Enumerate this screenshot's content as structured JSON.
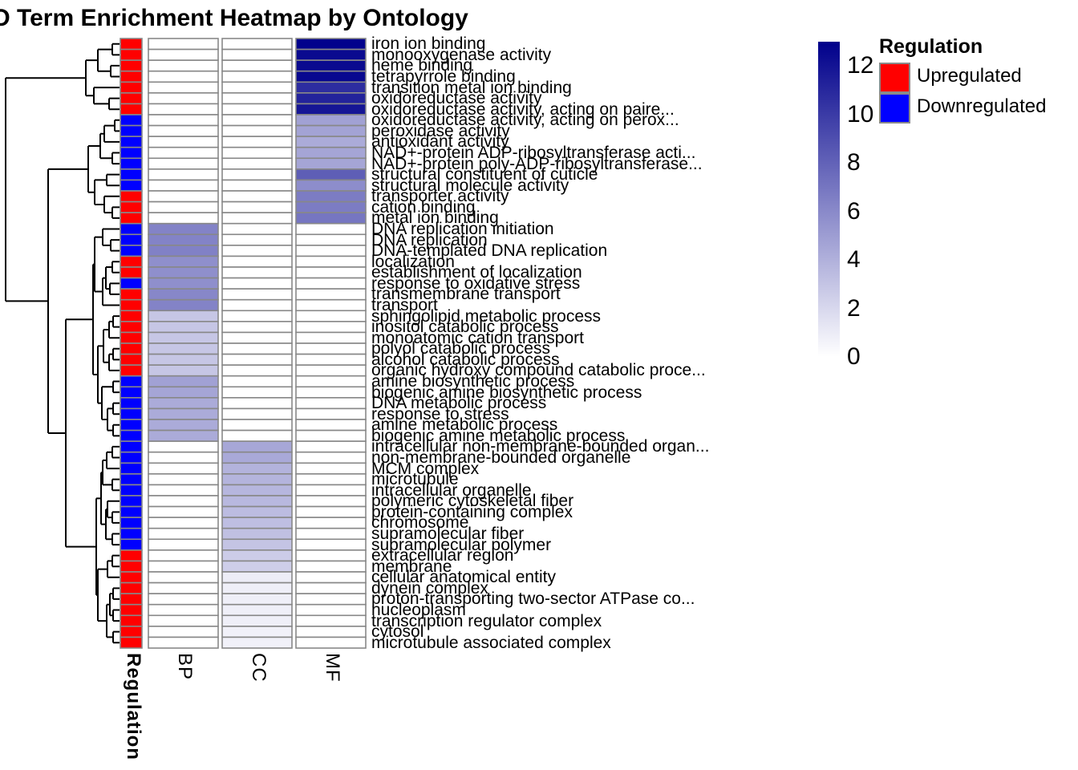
{
  "title": "GO Term Enrichment Heatmap by Ontology",
  "chart_data": {
    "type": "heatmap",
    "title": "GO Term Enrichment Heatmap by Ontology",
    "columns": [
      "BP",
      "CC",
      "MF"
    ],
    "annotation_title": "Regulation",
    "value_scale": {
      "min": 0,
      "max": 13,
      "color_low": "#FFFFFF",
      "color_high": "#00008B",
      "na_color": "#FFFFFF"
    },
    "regulation_colors": {
      "up": "#FF0000",
      "down": "#0000FF"
    },
    "rows": [
      {
        "label": "iron ion binding",
        "ontology": "MF",
        "value": 12.9,
        "regulation": "up"
      },
      {
        "label": "monooxygenase activity",
        "ontology": "MF",
        "value": 12.5,
        "regulation": "up"
      },
      {
        "label": "heme binding",
        "ontology": "MF",
        "value": 12.5,
        "regulation": "up"
      },
      {
        "label": "tetrapyrrole binding",
        "ontology": "MF",
        "value": 12.6,
        "regulation": "up"
      },
      {
        "label": "transition metal ion binding",
        "ontology": "MF",
        "value": 10.7,
        "regulation": "up"
      },
      {
        "label": "oxidoreductase activity",
        "ontology": "MF",
        "value": 11.2,
        "regulation": "up"
      },
      {
        "label": "oxidoreductase activity, acting on paire...",
        "ontology": "MF",
        "value": 11.9,
        "regulation": "up"
      },
      {
        "label": "oxidoreductase activity, acting on perox...",
        "ontology": "MF",
        "value": 4.8,
        "regulation": "down"
      },
      {
        "label": "peroxidase activity",
        "ontology": "MF",
        "value": 4.7,
        "regulation": "down"
      },
      {
        "label": "antioxidant activity",
        "ontology": "MF",
        "value": 4.3,
        "regulation": "down"
      },
      {
        "label": "NAD+-protein ADP-ribosyltransferase acti...",
        "ontology": "MF",
        "value": 4.6,
        "regulation": "down"
      },
      {
        "label": "NAD+-protein poly-ADP-ribosyltransferase...",
        "ontology": "MF",
        "value": 4.6,
        "regulation": "down"
      },
      {
        "label": "structural constituent of cuticle",
        "ontology": "MF",
        "value": 8.2,
        "regulation": "down"
      },
      {
        "label": "structural molecule activity",
        "ontology": "MF",
        "value": 5.8,
        "regulation": "down"
      },
      {
        "label": "transporter activity",
        "ontology": "MF",
        "value": 6.7,
        "regulation": "up"
      },
      {
        "label": "cation binding",
        "ontology": "MF",
        "value": 6.7,
        "regulation": "up"
      },
      {
        "label": "metal ion binding",
        "ontology": "MF",
        "value": 7.0,
        "regulation": "up"
      },
      {
        "label": "DNA replication initiation",
        "ontology": "BP",
        "value": 6.3,
        "regulation": "down"
      },
      {
        "label": "DNA replication",
        "ontology": "BP",
        "value": 6.3,
        "regulation": "down"
      },
      {
        "label": "DNA-templated DNA replication",
        "ontology": "BP",
        "value": 6.4,
        "regulation": "down"
      },
      {
        "label": "localization",
        "ontology": "BP",
        "value": 5.7,
        "regulation": "up"
      },
      {
        "label": "establishment of localization",
        "ontology": "BP",
        "value": 5.7,
        "regulation": "up"
      },
      {
        "label": "response to oxidative stress",
        "ontology": "BP",
        "value": 5.7,
        "regulation": "down"
      },
      {
        "label": "transmembrane transport",
        "ontology": "BP",
        "value": 6.1,
        "regulation": "up"
      },
      {
        "label": "transport",
        "ontology": "BP",
        "value": 6.3,
        "regulation": "up"
      },
      {
        "label": "sphingolipid metabolic process",
        "ontology": "BP",
        "value": 2.9,
        "regulation": "up"
      },
      {
        "label": "inositol catabolic process",
        "ontology": "BP",
        "value": 2.9,
        "regulation": "up"
      },
      {
        "label": "monoatomic cation transport",
        "ontology": "BP",
        "value": 2.9,
        "regulation": "up"
      },
      {
        "label": "polyol catabolic process",
        "ontology": "BP",
        "value": 2.9,
        "regulation": "up"
      },
      {
        "label": "alcohol catabolic process",
        "ontology": "BP",
        "value": 2.9,
        "regulation": "up"
      },
      {
        "label": "organic hydroxy compound catabolic proce...",
        "ontology": "BP",
        "value": 2.9,
        "regulation": "up"
      },
      {
        "label": "amine biosynthetic process",
        "ontology": "BP",
        "value": 4.8,
        "regulation": "down"
      },
      {
        "label": "biogenic amine biosynthetic process",
        "ontology": "BP",
        "value": 4.6,
        "regulation": "down"
      },
      {
        "label": "DNA metabolic process",
        "ontology": "BP",
        "value": 4.3,
        "regulation": "down"
      },
      {
        "label": "response to stress",
        "ontology": "BP",
        "value": 4.3,
        "regulation": "down"
      },
      {
        "label": "amine metabolic process",
        "ontology": "BP",
        "value": 4.3,
        "regulation": "down"
      },
      {
        "label": "biogenic amine metabolic process",
        "ontology": "BP",
        "value": 4.3,
        "regulation": "down"
      },
      {
        "label": "intracellular non-membrane-bounded organ...",
        "ontology": "CC",
        "value": 4.5,
        "regulation": "down"
      },
      {
        "label": "non-membrane-bounded organelle",
        "ontology": "CC",
        "value": 4.4,
        "regulation": "down"
      },
      {
        "label": "MCM complex",
        "ontology": "CC",
        "value": 3.9,
        "regulation": "down"
      },
      {
        "label": "microtubule",
        "ontology": "CC",
        "value": 3.8,
        "regulation": "down"
      },
      {
        "label": "intracellular organelle",
        "ontology": "CC",
        "value": 3.7,
        "regulation": "down"
      },
      {
        "label": "polymeric cytoskeletal fiber",
        "ontology": "CC",
        "value": 3.6,
        "regulation": "down"
      },
      {
        "label": "protein-containing complex",
        "ontology": "CC",
        "value": 3.4,
        "regulation": "down"
      },
      {
        "label": "chromosome",
        "ontology": "CC",
        "value": 3.3,
        "regulation": "down"
      },
      {
        "label": "supramolecular fiber",
        "ontology": "CC",
        "value": 3.2,
        "regulation": "down"
      },
      {
        "label": "supramolecular polymer",
        "ontology": "CC",
        "value": 3.0,
        "regulation": "down"
      },
      {
        "label": "extracellular region",
        "ontology": "CC",
        "value": 2.6,
        "regulation": "up"
      },
      {
        "label": "membrane",
        "ontology": "CC",
        "value": 2.5,
        "regulation": "up"
      },
      {
        "label": "cellular anatomical entity",
        "ontology": "CC",
        "value": 0.9,
        "regulation": "up"
      },
      {
        "label": "dynein complex",
        "ontology": "CC",
        "value": 0.8,
        "regulation": "up"
      },
      {
        "label": "proton-transporting two-sector ATPase co...",
        "ontology": "CC",
        "value": 0.8,
        "regulation": "up"
      },
      {
        "label": "nucleoplasm",
        "ontology": "CC",
        "value": 0.8,
        "regulation": "up"
      },
      {
        "label": "transcription regulator complex",
        "ontology": "CC",
        "value": 0.8,
        "regulation": "up"
      },
      {
        "label": "cytosol",
        "ontology": "CC",
        "value": 0.7,
        "regulation": "up"
      },
      {
        "label": "microtubule associated complex",
        "ontology": "CC",
        "value": 0.7,
        "regulation": "up"
      }
    ],
    "dendrogram": [
      7,
      [
        107,
        [
          122,
          [
            140,
            0,
            1
          ],
          [
            138,
            2,
            3
          ]
        ],
        [
          117,
          4,
          [
            136,
            5,
            6
          ]
        ]
      ],
      [
        60,
        [
          110,
          [
            125,
            [
              130,
              [
                143,
                7,
                8
              ],
              9
            ],
            [
              140,
              10,
              11
            ]
          ],
          [
            118,
            [
              133,
              12,
              13
            ],
            [
              130,
              14,
              [
                140,
                15,
                16
              ]
            ]
          ]
        ],
        [
          82,
          [
            116,
            [
              118,
              [
                128,
                17,
                [
                  138,
                  18,
                  19
                ]
              ],
              [
                128,
                [
                  132,
                  [
                    140,
                    20,
                    21
                  ],
                  [
                    137,
                    22,
                    23
                  ]
                ],
                24
              ]
            ],
            [
              122,
              [
                129,
                [
                  136,
                  [
                    141,
                    25,
                    26
                  ],
                  27
                ],
                [
                  136,
                  [
                    141,
                    28,
                    29
                  ],
                  30
                ]
              ],
              [
                127,
                [
                  141,
                  31,
                  32
                ],
                [
                  134,
                  [
                    141,
                    33,
                    34
                  ],
                  [
                    141,
                    35,
                    36
                  ]
                ]
              ]
            ]
          ],
          [
            120,
            [
              126,
              [
                128,
                [
                  133,
                  [
                    140,
                    37,
                    38
                  ],
                  39
                ],
                [
                  140,
                  40,
                  41
                ]
              ],
              [
                132,
                [
                  134,
                  42,
                  [
                    140,
                    43,
                    44
                  ]
                ],
                [
                  140,
                  45,
                  46
                ]
              ]
            ],
            [
              122,
              [
                134,
                [
                  140,
                  47,
                  48
                ],
                49
              ],
              [
                133,
                [
                  137,
                  [
                    141,
                    50,
                    51
                  ],
                  [
                    141,
                    52,
                    53
                  ]
                ],
                [
                  141,
                  54,
                  55
                ]
              ]
            ]
          ]
        ]
      ]
    ]
  },
  "legend": {
    "colorbar_ticks": [
      12,
      10,
      8,
      6,
      4,
      2,
      0
    ],
    "regulation_title": "Regulation",
    "items": [
      {
        "label": "Upregulated",
        "color": "#FF0000"
      },
      {
        "label": "Downregulated",
        "color": "#0000FF"
      }
    ]
  }
}
